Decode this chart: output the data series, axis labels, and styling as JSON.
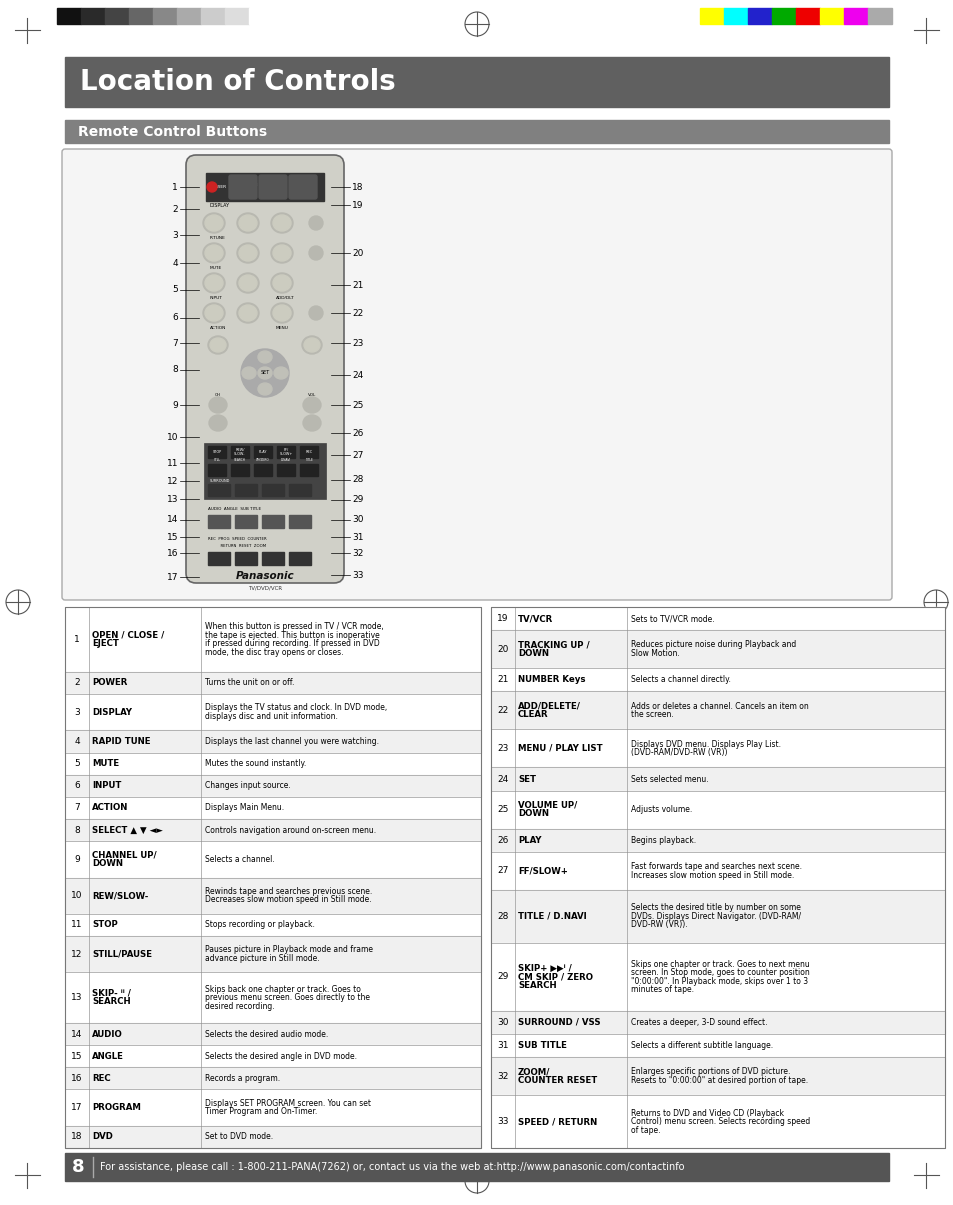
{
  "title": "Location of Controls",
  "subtitle": "Remote Control Buttons",
  "title_bg": "#606060",
  "subtitle_bg": "#808080",
  "title_color": "#ffffff",
  "subtitle_color": "#ffffff",
  "page_bg": "#ffffff",
  "border_color": "#999999",
  "page_number": "8",
  "footer_text": "For assistance, please call : 1-800-211-PANA(7262) or, contact us via the web at:http://www.panasonic.com/contactinfo",
  "footer_bg": "#555555",
  "footer_color": "#ffffff",
  "left_table": [
    [
      "1",
      "OPEN / CLOSE /\nEJECT",
      "When this button is pressed in TV / VCR mode,\nthe tape is ejected. This button is inoperative\nif pressed during recording. If pressed in DVD\nmode, the disc tray opens or closes."
    ],
    [
      "2",
      "POWER",
      "Turns the unit on or off."
    ],
    [
      "3",
      "DISPLAY",
      "Displays the TV status and clock. In DVD mode,\ndisplays disc and unit information."
    ],
    [
      "4",
      "RAPID TUNE",
      "Displays the last channel you were watching."
    ],
    [
      "5",
      "MUTE",
      "Mutes the sound instantly."
    ],
    [
      "6",
      "INPUT",
      "Changes input source."
    ],
    [
      "7",
      "ACTION",
      "Displays Main Menu."
    ],
    [
      "8",
      "SELECT ▲ ▼ ◄►",
      "Controls navigation around on-screen menu."
    ],
    [
      "9",
      "CHANNEL UP/\nDOWN",
      "Selects a channel."
    ],
    [
      "10",
      "REW/SLOW-",
      "Rewinds tape and searches previous scene.\nDecreases slow motion speed in Still mode."
    ],
    [
      "11",
      "STOP",
      "Stops recording or playback."
    ],
    [
      "12",
      "STILL/PAUSE",
      "Pauses picture in Playback mode and frame\nadvance picture in Still mode."
    ],
    [
      "13",
      "SKIP- ᑊᑊ /\nSEARCH",
      "Skips back one chapter or track. Goes to\nprevious menu screen. Goes directly to the\ndesired recording."
    ],
    [
      "14",
      "AUDIO",
      "Selects the desired audio mode."
    ],
    [
      "15",
      "ANGLE",
      "Selects the desired angle in DVD mode."
    ],
    [
      "16",
      "REC",
      "Records a program."
    ],
    [
      "17",
      "PROGRAM",
      "Displays SET PROGRAM screen. You can set\nTimer Program and On-Timer."
    ],
    [
      "18",
      "DVD",
      "Set to DVD mode."
    ]
  ],
  "right_table": [
    [
      "19",
      "TV/VCR",
      "Sets to TV/VCR mode."
    ],
    [
      "20",
      "TRACKING UP /\nDOWN",
      "Reduces picture noise during Playback and\nSlow Motion."
    ],
    [
      "21",
      "NUMBER Keys",
      "Selects a channel directly."
    ],
    [
      "22",
      "ADD/DELETE/\nCLEAR",
      "Adds or deletes a channel. Cancels an item on\nthe screen."
    ],
    [
      "23",
      "MENU / PLAY LIST",
      "Displays DVD menu. Displays Play List.\n(DVD-RAM/DVD-RW (VR))"
    ],
    [
      "24",
      "SET",
      "Sets selected menu."
    ],
    [
      "25",
      "VOLUME UP/\nDOWN",
      "Adjusts volume."
    ],
    [
      "26",
      "PLAY",
      "Begins playback."
    ],
    [
      "27",
      "FF/SLOW+",
      "Fast forwards tape and searches next scene.\nIncreases slow motion speed in Still mode."
    ],
    [
      "28",
      "TITLE / D.NAVI",
      "Selects the desired title by number on some\nDVDs. Displays Direct Navigator. (DVD-RAM/\nDVD-RW (VR))."
    ],
    [
      "29",
      "SKIP+ ▶▶ᑊ /\nCM SKIP / ZERO\nSEARCH",
      "Skips one chapter or track. Goes to next menu\nscreen. In Stop mode, goes to counter position\n\"0:00:00\". In Playback mode, skips over 1 to 3\nminutes of tape."
    ],
    [
      "30",
      "SURROUND / VSS",
      "Creates a deeper, 3-D sound effect."
    ],
    [
      "31",
      "SUB TITLE",
      "Selects a different subtitle language."
    ],
    [
      "32",
      "ZOOM/\nCOUNTER RESET",
      "Enlarges specific portions of DVD picture.\nResets to \"0:00:00\" at desired portion of tape."
    ],
    [
      "33",
      "SPEED / RETURN",
      "Returns to DVD and Video CD (Playback\nControl) menu screen. Selects recording speed\nof tape."
    ]
  ],
  "color_bars_left": [
    "#111111",
    "#2a2a2a",
    "#444444",
    "#666666",
    "#888888",
    "#aaaaaa",
    "#cccccc",
    "#dddddd",
    "#ffffff"
  ],
  "color_bars_right": [
    "#ffff00",
    "#00ffff",
    "#2222cc",
    "#00aa00",
    "#ee0000",
    "#ffff00",
    "#ee00ee",
    "#aaaaaa"
  ]
}
